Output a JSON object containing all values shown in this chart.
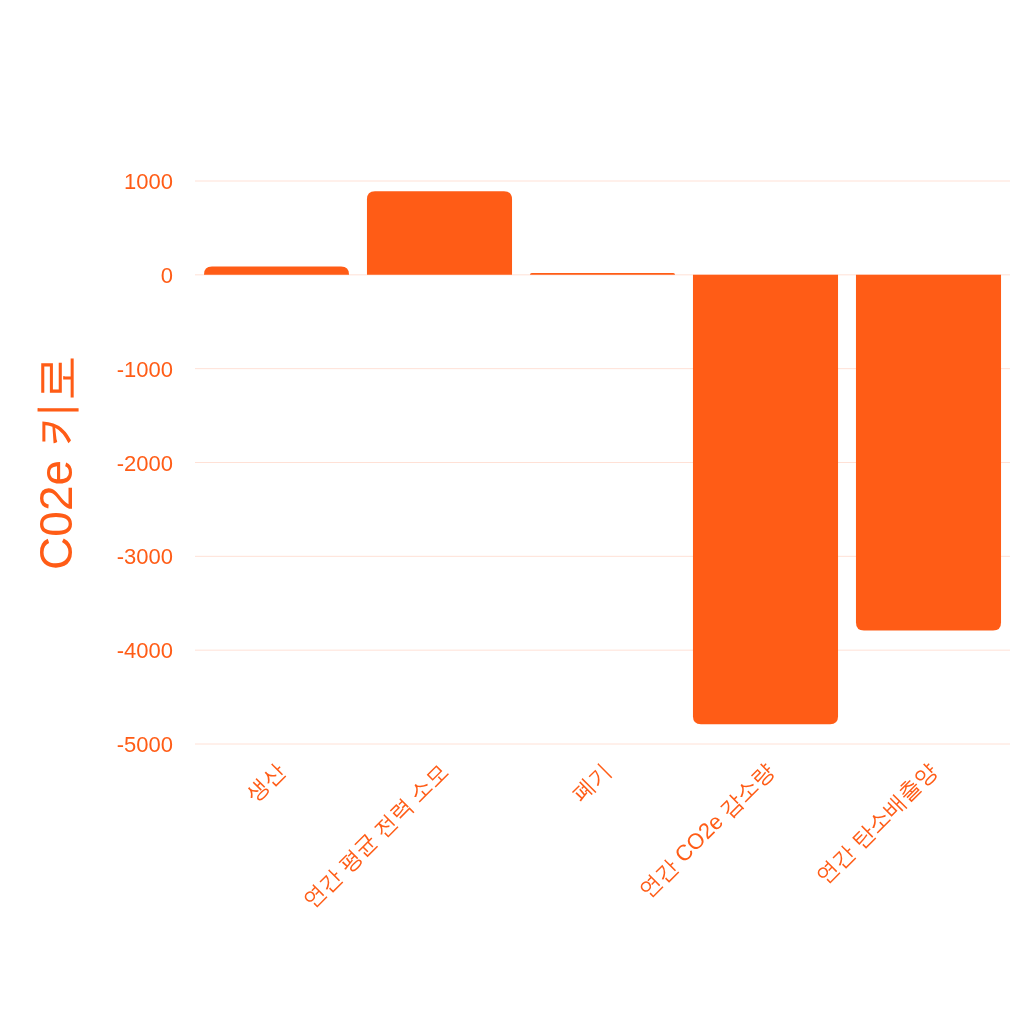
{
  "chart_data": {
    "type": "bar",
    "ylabel": "C02e 키로",
    "categories": [
      "생산",
      "연간 평균 전력 소모",
      "폐기",
      "연간 CO2e 감소량",
      "연간 탄소배출양"
    ],
    "values": [
      90,
      890,
      20,
      -4790,
      -3790
    ],
    "color": "#ff5c16",
    "ylim": [
      -5000,
      1000
    ],
    "yticks": [
      -5000,
      -4000,
      -3000,
      -2000,
      -1000,
      0,
      1000
    ],
    "grid": "y"
  }
}
